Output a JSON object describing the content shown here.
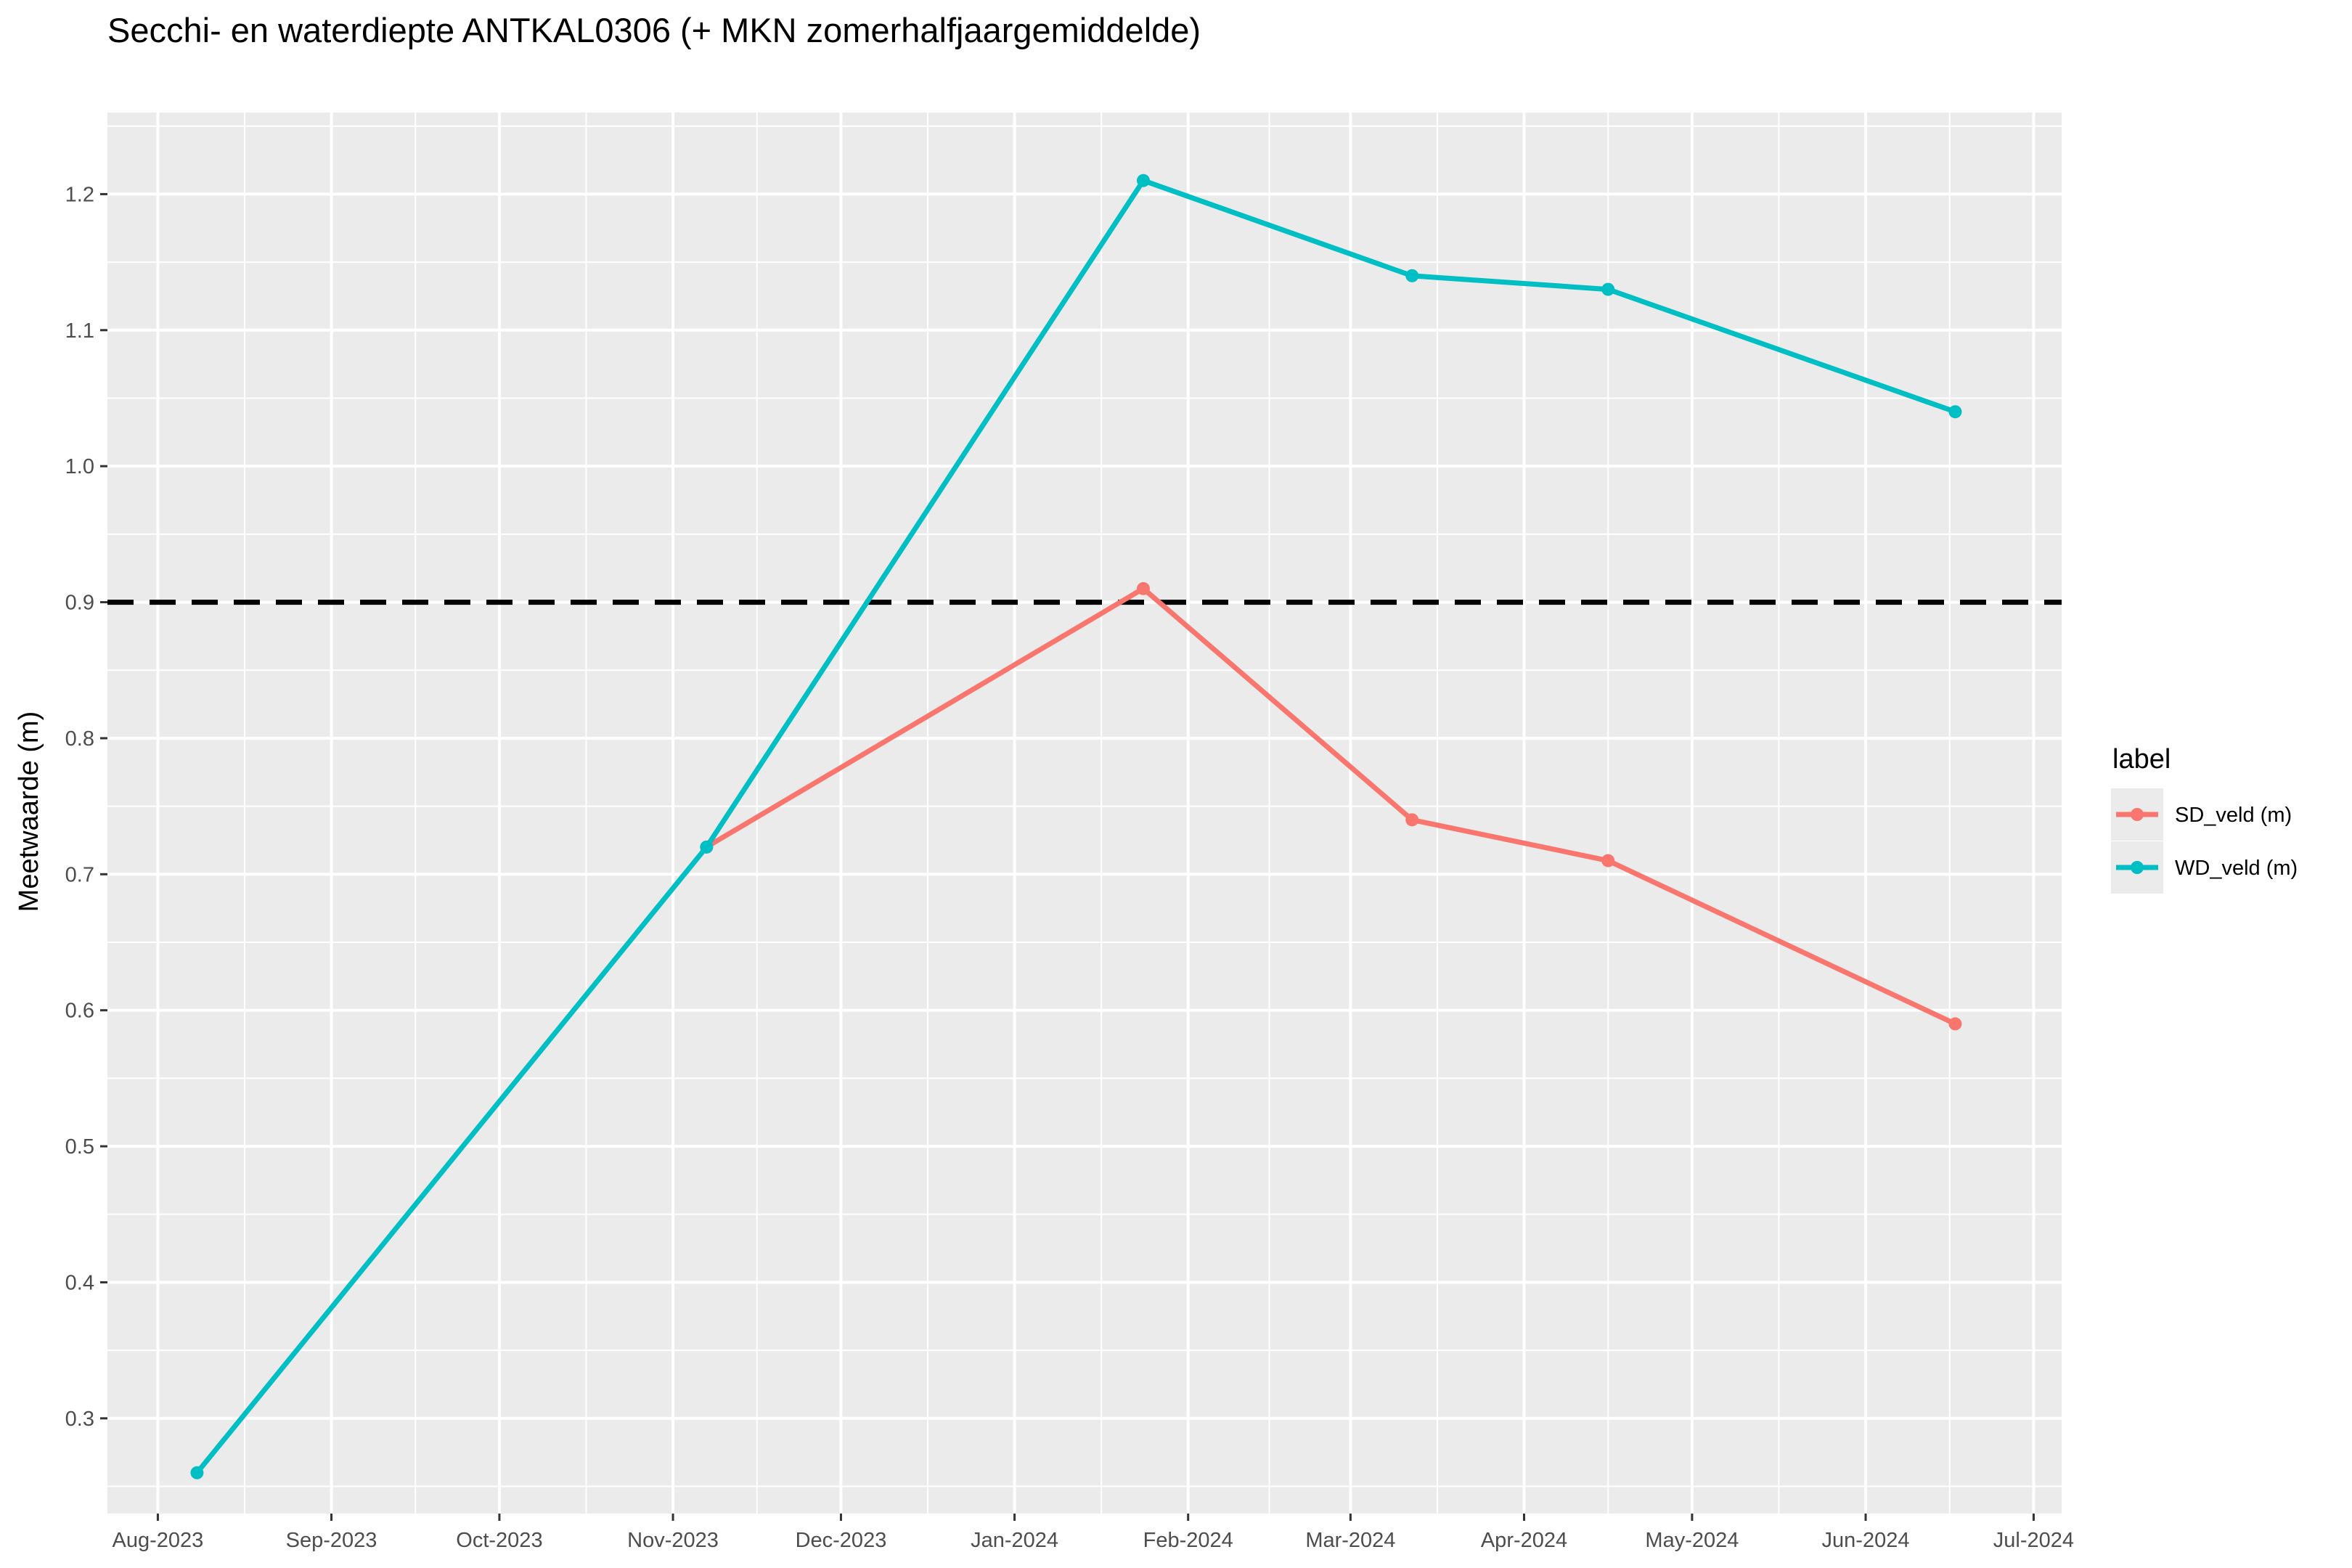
{
  "chart_data": {
    "type": "line",
    "title": "Secchi- en waterdiepte ANTKAL0306 (+ MKN  zomerhalfjaargemiddelde)",
    "xlabel": "",
    "ylabel": "Meetwaarde (m)",
    "ylim": [
      0.23,
      1.26
    ],
    "xlim": [
      "2023-07-23",
      "2024-07-06"
    ],
    "x_ticks": [
      {
        "label": "Aug-2023",
        "date": "2023-08-01"
      },
      {
        "label": "Sep-2023",
        "date": "2023-09-01"
      },
      {
        "label": "Oct-2023",
        "date": "2023-10-01"
      },
      {
        "label": "Nov-2023",
        "date": "2023-11-01"
      },
      {
        "label": "Dec-2023",
        "date": "2023-12-01"
      },
      {
        "label": "Jan-2024",
        "date": "2024-01-01"
      },
      {
        "label": "Feb-2024",
        "date": "2024-02-01"
      },
      {
        "label": "Mar-2024",
        "date": "2024-03-01"
      },
      {
        "label": "Apr-2024",
        "date": "2024-04-01"
      },
      {
        "label": "May-2024",
        "date": "2024-05-01"
      },
      {
        "label": "Jun-2024",
        "date": "2024-06-01"
      },
      {
        "label": "Jul-2024",
        "date": "2024-07-01"
      }
    ],
    "y_ticks": [
      0.3,
      0.4,
      0.5,
      0.6,
      0.7,
      0.8,
      0.9,
      1.0,
      1.1,
      1.2
    ],
    "y_tick_labels": [
      "0.3",
      "0.4",
      "0.5",
      "0.6",
      "0.7",
      "0.8",
      "0.9",
      "1.0",
      "1.1",
      "1.2"
    ],
    "legend_title": "label",
    "legend_position": "right",
    "grid": true,
    "hline": {
      "y": 0.9,
      "style": "dashed",
      "color": "#000000"
    },
    "series": [
      {
        "name": "SD_veld (m)",
        "color": "#F8766D",
        "points": [
          {
            "x": "2023-11-07",
            "y": 0.72
          },
          {
            "x": "2024-01-24",
            "y": 0.91
          },
          {
            "x": "2024-03-12",
            "y": 0.74
          },
          {
            "x": "2024-04-16",
            "y": 0.71
          },
          {
            "x": "2024-06-17",
            "y": 0.59
          }
        ]
      },
      {
        "name": "WD_veld (m)",
        "color": "#00BFC4",
        "points": [
          {
            "x": "2023-08-08",
            "y": 0.26
          },
          {
            "x": "2023-11-07",
            "y": 0.72
          },
          {
            "x": "2024-01-24",
            "y": 1.21
          },
          {
            "x": "2024-03-12",
            "y": 1.14
          },
          {
            "x": "2024-04-16",
            "y": 1.13
          },
          {
            "x": "2024-06-17",
            "y": 1.04
          }
        ]
      }
    ]
  }
}
